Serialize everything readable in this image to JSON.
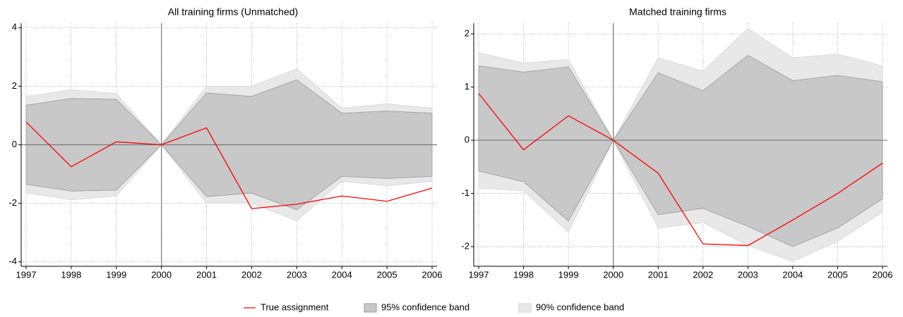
{
  "chart_data": [
    {
      "type": "band-line",
      "title": "All training firms (Unmatched)",
      "x": [
        1997,
        1998,
        1999,
        2000,
        2001,
        2002,
        2003,
        2004,
        2005,
        2006
      ],
      "xlim": [
        1997,
        2006
      ],
      "xticks": [
        1997,
        1998,
        1999,
        2000,
        2001,
        2002,
        2003,
        2004,
        2005,
        2006
      ],
      "ylim": [
        -4.15,
        4.15
      ],
      "yticks": [
        -4,
        -2,
        0,
        2,
        4
      ],
      "grid": true,
      "xline": 2000,
      "yline": 0,
      "series": [
        {
          "name": "True assignment",
          "color": "#ff0000",
          "values": [
            0.78,
            -0.75,
            0.1,
            0,
            0.58,
            -2.18,
            -2.03,
            -1.75,
            -1.93,
            -1.48
          ]
        },
        {
          "name": "95% confidence band",
          "color": "#c8c8c8",
          "upper": [
            1.35,
            1.58,
            1.55,
            0,
            1.77,
            1.65,
            2.22,
            1.08,
            1.15,
            1.08
          ],
          "lower": [
            -1.35,
            -1.58,
            -1.55,
            0,
            -1.77,
            -1.65,
            -2.22,
            -1.08,
            -1.15,
            -1.08
          ]
        },
        {
          "name": "90% confidence band",
          "color": "#e8e8e8",
          "upper": [
            1.65,
            1.88,
            1.75,
            0,
            2.0,
            2.0,
            2.6,
            1.25,
            1.4,
            1.25
          ],
          "lower": [
            -1.65,
            -1.88,
            -1.75,
            0,
            -2.0,
            -2.0,
            -2.6,
            -1.25,
            -1.4,
            -1.25
          ]
        }
      ]
    },
    {
      "type": "band-line",
      "title": "Matched training firms",
      "x": [
        1997,
        1998,
        1999,
        2000,
        2001,
        2002,
        2003,
        2004,
        2005,
        2006
      ],
      "xlim": [
        1997,
        2006
      ],
      "xticks": [
        1997,
        1998,
        1999,
        2000,
        2001,
        2002,
        2003,
        2004,
        2005,
        2006
      ],
      "ylim": [
        -2.37,
        2.2
      ],
      "yticks": [
        -2,
        -1,
        0,
        1,
        2
      ],
      "grid": true,
      "xline": 2000,
      "yline": 0,
      "series": [
        {
          "name": "True assignment",
          "color": "#ff0000",
          "values": [
            0.88,
            -0.18,
            0.46,
            0,
            -0.62,
            -1.95,
            -1.98,
            -1.5,
            -1.0,
            -0.43
          ]
        },
        {
          "name": "95% confidence band",
          "color": "#c8c8c8",
          "upper": [
            1.4,
            1.28,
            1.38,
            0,
            1.27,
            0.93,
            1.6,
            1.12,
            1.22,
            1.1
          ],
          "lower": [
            -0.58,
            -0.78,
            -1.52,
            0,
            -1.4,
            -1.28,
            -1.62,
            -2.0,
            -1.65,
            -1.1
          ]
        },
        {
          "name": "90% confidence band",
          "color": "#e8e8e8",
          "upper": [
            1.65,
            1.45,
            1.52,
            0,
            1.55,
            1.3,
            2.1,
            1.55,
            1.62,
            1.4
          ],
          "lower": [
            -0.9,
            -0.95,
            -1.73,
            0,
            -1.65,
            -1.55,
            -1.98,
            -2.28,
            -1.9,
            -1.35
          ]
        }
      ]
    }
  ]
}
